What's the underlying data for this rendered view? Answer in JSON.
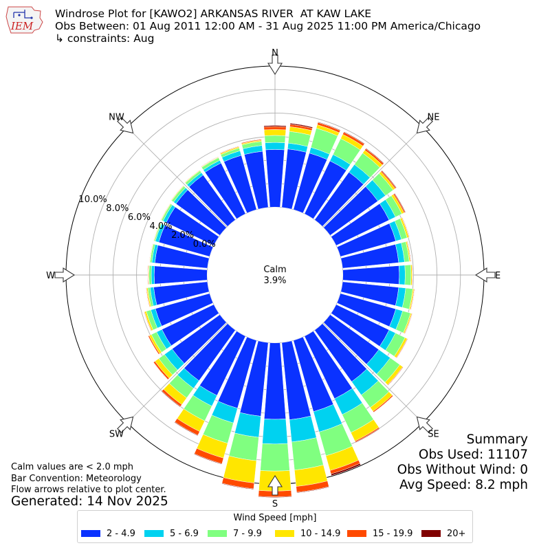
{
  "header": {
    "title": "Windrose Plot for [KAWO2] ARKANSAS RIVER  AT KAW LAKE",
    "obs_between": "Obs Between: 01 Aug 2011 12:00 AM - 31 Aug 2025 11:00 PM America/Chicago",
    "constraints": "↳ constraints: Aug",
    "logo_text": "IEM"
  },
  "notes": {
    "calm": "Calm values are < 2.0 mph",
    "bar_convention": "Bar Convention: Meteorology",
    "flow_arrows": "Flow arrows relative to plot center.",
    "generated": "Generated: 14 Nov 2025"
  },
  "summary": {
    "title": "Summary",
    "obs_used": "Obs Used: 11107",
    "obs_without_wind": "Obs Without Wind: 0",
    "avg_speed": "Avg Speed: 8.2 mph"
  },
  "legend": {
    "title": "Wind Speed [mph]",
    "items": [
      {
        "label": "2 - 4.9",
        "color": "#0a32ff"
      },
      {
        "label": "5 - 6.9",
        "color": "#00d2f0"
      },
      {
        "label": "7 - 9.9",
        "color": "#80ff80"
      },
      {
        "label": "10 - 14.9",
        "color": "#ffe600"
      },
      {
        "label": "15 - 19.9",
        "color": "#ff4a00"
      },
      {
        "label": "20+",
        "color": "#800000"
      }
    ]
  },
  "chart_data": {
    "type": "windrose",
    "calm_label": "Calm",
    "calm_value": "3.9%",
    "calm_percent": 3.9,
    "rmax_percent": 12,
    "radial_ticks": [
      0,
      2,
      4,
      6,
      8,
      10
    ],
    "radial_tick_labels": [
      "0.0%",
      "2.0%",
      "4.0%",
      "6.0%",
      "8.0%",
      "10.0%"
    ],
    "directions": [
      {
        "label": "N",
        "deg": 0
      },
      {
        "label": "NE",
        "deg": 45
      },
      {
        "label": "E",
        "deg": 90
      },
      {
        "label": "SE",
        "deg": 135
      },
      {
        "label": "S",
        "deg": 180
      },
      {
        "label": "SW",
        "deg": 225
      },
      {
        "label": "W",
        "deg": 270
      },
      {
        "label": "NW",
        "deg": 315
      }
    ],
    "sector_directions_deg": [
      0,
      10,
      20,
      30,
      40,
      50,
      60,
      70,
      80,
      90,
      100,
      110,
      120,
      130,
      140,
      150,
      160,
      170,
      180,
      190,
      200,
      210,
      220,
      230,
      240,
      250,
      260,
      270,
      280,
      290,
      300,
      310,
      320,
      330,
      340,
      350
    ],
    "series": [
      {
        "name": "2 - 4.9",
        "values": [
          4.9,
          5.0,
          5.0,
          5.0,
          5.0,
          5.0,
          5.0,
          4.9,
          4.8,
          4.8,
          4.8,
          4.9,
          5.0,
          5.1,
          5.4,
          5.9,
          6.3,
          6.6,
          6.5,
          6.3,
          6.0,
          5.6,
          5.3,
          5.0,
          4.9,
          4.8,
          4.6,
          4.5,
          4.5,
          4.5,
          4.5,
          4.6,
          4.7,
          4.8,
          4.8,
          4.8
        ]
      },
      {
        "name": "5 - 6.9",
        "values": [
          5.5,
          5.5,
          5.5,
          5.6,
          5.8,
          5.8,
          5.6,
          5.4,
          5.3,
          5.3,
          5.4,
          5.5,
          5.6,
          6.3,
          6.8,
          7.4,
          8.1,
          8.5,
          8.6,
          8.1,
          7.3,
          6.6,
          6.1,
          5.8,
          5.4,
          5.2,
          4.9,
          4.75,
          4.75,
          4.8,
          4.8,
          4.85,
          4.95,
          5.05,
          5.2,
          5.3
        ]
      },
      {
        "name": "7 - 9.9",
        "values": [
          6.1,
          6.5,
          7.2,
          7.1,
          7.0,
          6.6,
          6.2,
          5.9,
          5.7,
          5.8,
          6.0,
          6.2,
          6.5,
          7.3,
          8.1,
          9.1,
          10.2,
          10.9,
          10.9,
          10.1,
          9.1,
          8.0,
          7.1,
          6.4,
          5.9,
          5.6,
          5.1,
          4.95,
          4.9,
          4.9,
          4.95,
          5.05,
          5.15,
          5.3,
          5.45,
          5.65
        ]
      },
      {
        "name": "10 - 14.9",
        "values": [
          6.6,
          6.9,
          7.5,
          7.5,
          7.3,
          6.8,
          6.4,
          6.05,
          5.8,
          5.9,
          6.1,
          6.3,
          6.7,
          7.6,
          8.5,
          9.9,
          11.5,
          12.3,
          12.6,
          12.0,
          10.4,
          9.0,
          7.8,
          6.8,
          6.1,
          5.75,
          5.2,
          5.0,
          4.95,
          4.95,
          5.0,
          5.1,
          5.2,
          5.35,
          5.55,
          5.75
        ]
      },
      {
        "name": "15 - 19.9",
        "values": [
          6.85,
          7.1,
          7.7,
          7.7,
          7.45,
          6.9,
          6.5,
          6.1,
          5.85,
          5.95,
          6.15,
          6.35,
          6.75,
          7.65,
          8.6,
          10.0,
          11.8,
          12.8,
          13.1,
          12.5,
          10.9,
          9.35,
          8.0,
          6.95,
          6.2,
          5.8,
          5.25,
          5.05,
          4.97,
          4.97,
          5.02,
          5.12,
          5.22,
          5.38,
          5.6,
          5.82
        ]
      },
      {
        "name": "20+",
        "values": [
          6.95,
          7.2,
          7.75,
          7.75,
          7.5,
          6.95,
          6.55,
          6.12,
          5.87,
          5.97,
          6.17,
          6.37,
          6.77,
          7.67,
          8.62,
          10.05,
          11.95,
          12.85,
          13.15,
          12.55,
          10.95,
          9.4,
          8.05,
          6.97,
          6.21,
          5.81,
          5.26,
          5.06,
          4.98,
          4.98,
          5.03,
          5.13,
          5.23,
          5.4,
          5.62,
          5.85
        ]
      }
    ]
  }
}
